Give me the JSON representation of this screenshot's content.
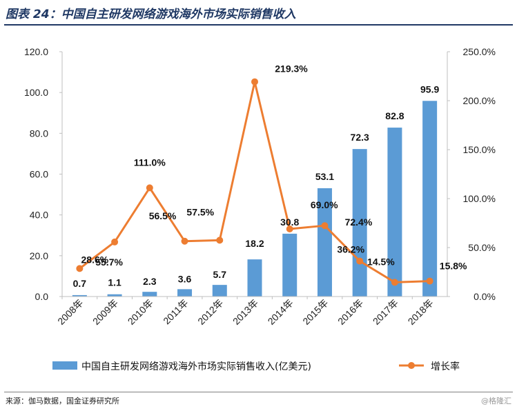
{
  "figure": {
    "title": "图表 24：中国自主研发网络游戏海外市场实际销售收入",
    "source": "来源：伽马数据，国金证券研究所",
    "watermark": "@格隆汇"
  },
  "colors": {
    "bar": "#5b9bd5",
    "line": "#ed7d31",
    "title": "#1f3864"
  },
  "chart_data": {
    "type": "bar+line",
    "categories": [
      "2008年",
      "2009年",
      "2010年",
      "2011年",
      "2012年",
      "2013年",
      "2014年",
      "2015年",
      "2016年",
      "2017年",
      "2018年"
    ],
    "series": [
      {
        "name": "中国自主研发网络游戏海外市场实际销售收入(亿美元)",
        "type": "bar",
        "axis": "left",
        "values": [
          0.7,
          1.1,
          2.3,
          3.6,
          5.7,
          18.2,
          30.8,
          53.1,
          72.3,
          82.8,
          95.9
        ],
        "labels": [
          "0.7",
          "1.1",
          "2.3",
          "3.6",
          "5.7",
          "18.2",
          "30.8",
          "53.1",
          "72.3",
          "82.8",
          "95.9"
        ]
      },
      {
        "name": "增长率",
        "type": "line",
        "axis": "right",
        "values": [
          28.6,
          55.7,
          111.0,
          56.5,
          57.5,
          219.3,
          69.0,
          72.4,
          36.2,
          14.5,
          15.8
        ],
        "labels": [
          "28.6%",
          "55.7%",
          "111.0%",
          "56.5%",
          "57.5%",
          "219.3%",
          "69.0%",
          "72.4%",
          "36.2%",
          "14.5%",
          "15.8%"
        ]
      }
    ],
    "y_left": {
      "range": [
        0,
        120
      ],
      "ticks": [
        "0.0",
        "20.0",
        "40.0",
        "60.0",
        "80.0",
        "100.0",
        "120.0"
      ]
    },
    "y_right": {
      "range": [
        0,
        250
      ],
      "ticks": [
        "0.0%",
        "50.0%",
        "100.0%",
        "150.0%",
        "200.0%",
        "250.0%"
      ]
    },
    "grid": false,
    "legend_position": "bottom"
  }
}
